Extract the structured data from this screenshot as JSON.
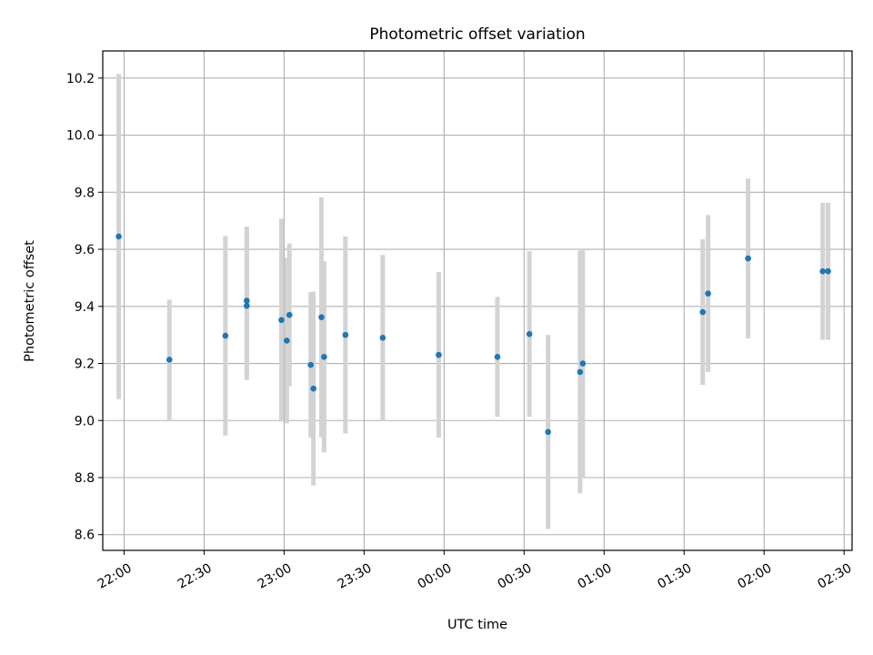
{
  "chart_data": {
    "type": "scatter",
    "title": "Photometric offset variation",
    "xlabel": "UTC time",
    "ylabel": "Photometric offset",
    "xlim": [
      "21:52",
      "02:33"
    ],
    "ylim": [
      8.545,
      10.295
    ],
    "x_ticks": [
      "22:00",
      "22:30",
      "23:00",
      "23:30",
      "00:00",
      "00:30",
      "01:00",
      "01:30",
      "02:00",
      "02:30"
    ],
    "y_ticks": [
      "8.6",
      "8.8",
      "9.0",
      "9.2",
      "9.4",
      "9.6",
      "9.8",
      "10.0",
      "10.2"
    ],
    "grid": true,
    "colors": {
      "points": "#1f77b4",
      "errorbars": "#d3d3d3",
      "grid": "#b0b0b0"
    },
    "series": [
      {
        "points": [
          {
            "x": "21:58",
            "y": 9.645,
            "err": 0.57
          },
          {
            "x": "22:17",
            "y": 9.213,
            "err": 0.21
          },
          {
            "x": "22:38",
            "y": 9.297,
            "err": 0.35
          },
          {
            "x": "22:46",
            "y": 9.42,
            "err": 0.26
          },
          {
            "x": "22:46",
            "y": 9.402,
            "err": 0.26
          },
          {
            "x": "22:59",
            "y": 9.352,
            "err": 0.355
          },
          {
            "x": "23:01",
            "y": 9.28,
            "err": 0.29
          },
          {
            "x": "23:02",
            "y": 9.37,
            "err": 0.25
          },
          {
            "x": "23:10",
            "y": 9.195,
            "err": 0.255
          },
          {
            "x": "23:11",
            "y": 9.112,
            "err": 0.34
          },
          {
            "x": "23:14",
            "y": 9.362,
            "err": 0.42
          },
          {
            "x": "23:15",
            "y": 9.223,
            "err": 0.335
          },
          {
            "x": "23:23",
            "y": 9.3,
            "err": 0.345
          },
          {
            "x": "23:37",
            "y": 9.29,
            "err": 0.29
          },
          {
            "x": "23:58",
            "y": 9.23,
            "err": 0.29
          },
          {
            "x": "00:20",
            "y": 9.223,
            "err": 0.21
          },
          {
            "x": "00:32",
            "y": 9.303,
            "err": 0.29
          },
          {
            "x": "00:39",
            "y": 8.96,
            "err": 0.34
          },
          {
            "x": "00:51",
            "y": 9.17,
            "err": 0.425
          },
          {
            "x": "00:52",
            "y": 9.2,
            "err": 0.4
          },
          {
            "x": "01:37",
            "y": 9.38,
            "err": 0.255
          },
          {
            "x": "01:39",
            "y": 9.445,
            "err": 0.275
          },
          {
            "x": "01:54",
            "y": 9.568,
            "err": 0.28
          },
          {
            "x": "02:22",
            "y": 9.523,
            "err": 0.24
          },
          {
            "x": "02:24",
            "y": 9.523,
            "err": 0.24
          }
        ]
      }
    ]
  }
}
